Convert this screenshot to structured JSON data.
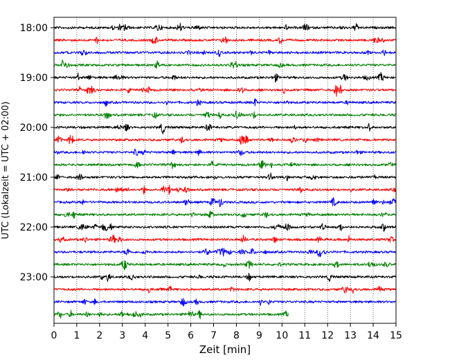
{
  "chart_data": {
    "type": "line",
    "title": "",
    "xlabel": "Zeit  [min]",
    "ylabel": "UTC (Lokalzeit = UTC + 02:00)",
    "xlim": [
      0,
      15
    ],
    "x_ticks": [
      0,
      1,
      2,
      3,
      4,
      5,
      6,
      7,
      8,
      9,
      10,
      11,
      12,
      13,
      14,
      15
    ],
    "x_tick_labels": [
      "0",
      "1",
      "2",
      "3",
      "4",
      "5",
      "6",
      "7",
      "8",
      "9",
      "10",
      "11",
      "12",
      "13",
      "14",
      "15"
    ],
    "y_ticks": [
      "18:00",
      "19:00",
      "20:00",
      "21:00",
      "22:00",
      "23:00"
    ],
    "vertical_grid": "dotted",
    "trace_interval_minutes": 15,
    "trace_colors": [
      "#000000",
      "#ff0000",
      "#0000ff",
      "#008000"
    ],
    "traces": [
      {
        "start": "18:00",
        "duration_min": 15
      },
      {
        "start": "18:15",
        "duration_min": 15
      },
      {
        "start": "18:30",
        "duration_min": 15
      },
      {
        "start": "18:45",
        "duration_min": 15
      },
      {
        "start": "19:00",
        "duration_min": 15
      },
      {
        "start": "19:15",
        "duration_min": 15
      },
      {
        "start": "19:30",
        "duration_min": 15
      },
      {
        "start": "19:45",
        "duration_min": 15
      },
      {
        "start": "20:00",
        "duration_min": 15
      },
      {
        "start": "20:15",
        "duration_min": 15
      },
      {
        "start": "20:30",
        "duration_min": 15
      },
      {
        "start": "20:45",
        "duration_min": 15
      },
      {
        "start": "21:00",
        "duration_min": 15
      },
      {
        "start": "21:15",
        "duration_min": 15
      },
      {
        "start": "21:30",
        "duration_min": 15
      },
      {
        "start": "21:45",
        "duration_min": 15
      },
      {
        "start": "22:00",
        "duration_min": 15
      },
      {
        "start": "22:15",
        "duration_min": 15
      },
      {
        "start": "22:30",
        "duration_min": 15
      },
      {
        "start": "22:45",
        "duration_min": 15
      },
      {
        "start": "23:00",
        "duration_min": 15
      },
      {
        "start": "23:15",
        "duration_min": 15
      },
      {
        "start": "23:30",
        "duration_min": 15
      },
      {
        "start": "23:45",
        "duration_min": 10.3
      }
    ]
  }
}
